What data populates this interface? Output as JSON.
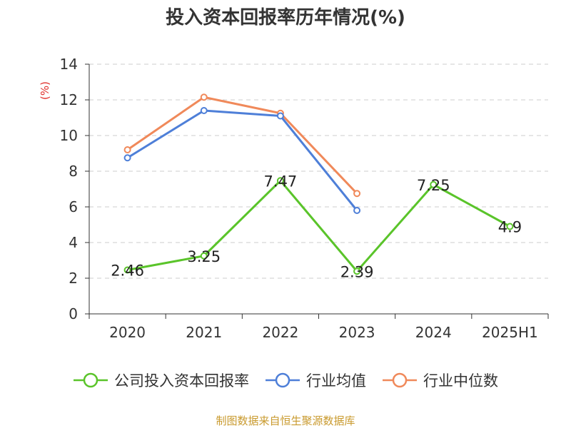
{
  "chart_data": {
    "type": "line",
    "title": "投入资本回报率历年情况(%)",
    "ylabel": "(%)",
    "xlabel": "",
    "categories": [
      "2020",
      "2021",
      "2022",
      "2023",
      "2024",
      "2025H1"
    ],
    "ylim": [
      0,
      14
    ],
    "yticks": [
      "0",
      "2",
      "4",
      "6",
      "8",
      "10",
      "12",
      "14"
    ],
    "grid": true,
    "legend_position": "bottom",
    "series": [
      {
        "name": "公司投入资本回报率",
        "color": "#5ac42a",
        "values": [
          2.46,
          3.25,
          7.47,
          2.39,
          7.25,
          4.9
        ],
        "labels": [
          "2.46",
          "3.25",
          "7.47",
          "2.39",
          "7.25",
          "4.9"
        ]
      },
      {
        "name": "行业均值",
        "color": "#4e7fd8",
        "values": [
          8.75,
          11.4,
          11.1,
          5.8,
          null,
          null
        ]
      },
      {
        "name": "行业中位数",
        "color": "#f0895a",
        "values": [
          9.2,
          12.15,
          11.25,
          6.75,
          null,
          null
        ]
      }
    ]
  },
  "source": "制图数据来自恒生聚源数据库"
}
